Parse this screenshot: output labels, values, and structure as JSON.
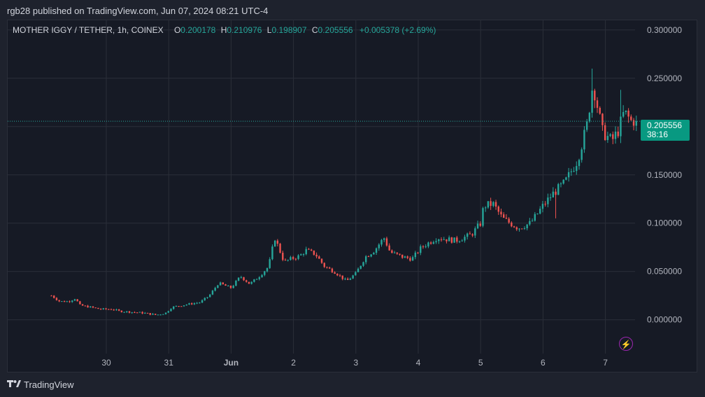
{
  "header": {
    "publisher_line": "rgb28 published on TradingView.com, Jun 07, 2024 08:21 UTC-4"
  },
  "legend": {
    "symbol": "MOTHER IGGY / TETHER, 1h, COINEX",
    "open_label": "O",
    "open": "0.200178",
    "high_label": "H",
    "high": "0.210976",
    "low_label": "L",
    "low": "0.198907",
    "close_label": "C",
    "close": "0.205556",
    "change": "+0.005378 (+2.69%)"
  },
  "price_tag": {
    "price": "0.205556",
    "countdown": "38:16"
  },
  "footer": {
    "brand": "TradingView",
    "logo_icon": "tradingview-logo-icon"
  },
  "colors": {
    "up": "#26a69a",
    "down": "#ef5350",
    "background": "#161a25",
    "grid": "#2a2e39",
    "price_line": "#26a69a"
  },
  "chart_data": {
    "type": "candlestick",
    "title": "MOTHER IGGY / TETHER, 1h, COINEX",
    "interval": "1h",
    "y_ticks": [
      0.0,
      0.05,
      0.1,
      0.15,
      0.2,
      0.25,
      0.3
    ],
    "y_tick_labels": [
      "0.000000",
      "0.050000",
      "0.100000",
      "0.150000",
      "0.200000",
      "0.250000",
      "0.300000"
    ],
    "ylim": [
      -0.035,
      0.31
    ],
    "x_ticks": [
      "30",
      "31",
      "Jun",
      "2",
      "3",
      "4",
      "5",
      "6",
      "7"
    ],
    "x_tick_days": [
      0,
      1,
      2,
      3,
      4,
      5,
      6,
      7,
      8
    ],
    "current_price": 0.205556,
    "grid": true,
    "path": [
      [
        -0.88,
        0.025
      ],
      [
        -0.75,
        0.019
      ],
      [
        -0.6,
        0.019
      ],
      [
        -0.5,
        0.022
      ],
      [
        -0.42,
        0.015
      ],
      [
        -0.25,
        0.013
      ],
      [
        -0.1,
        0.011
      ],
      [
        0.1,
        0.011
      ],
      [
        0.2,
        0.009
      ],
      [
        0.4,
        0.008
      ],
      [
        0.6,
        0.007
      ],
      [
        0.8,
        0.005
      ],
      [
        0.95,
        0.007
      ],
      [
        1.05,
        0.013
      ],
      [
        1.3,
        0.016
      ],
      [
        1.5,
        0.018
      ],
      [
        1.65,
        0.025
      ],
      [
        1.8,
        0.038
      ],
      [
        2.0,
        0.033
      ],
      [
        2.15,
        0.045
      ],
      [
        2.3,
        0.037
      ],
      [
        2.45,
        0.045
      ],
      [
        2.6,
        0.055
      ],
      [
        2.7,
        0.085
      ],
      [
        2.85,
        0.06
      ],
      [
        3.0,
        0.064
      ],
      [
        3.1,
        0.066
      ],
      [
        3.2,
        0.072
      ],
      [
        3.35,
        0.068
      ],
      [
        3.5,
        0.055
      ],
      [
        3.65,
        0.05
      ],
      [
        3.85,
        0.04
      ],
      [
        4.0,
        0.048
      ],
      [
        4.15,
        0.065
      ],
      [
        4.3,
        0.072
      ],
      [
        4.45,
        0.085
      ],
      [
        4.55,
        0.07
      ],
      [
        4.75,
        0.065
      ],
      [
        4.9,
        0.063
      ],
      [
        5.05,
        0.075
      ],
      [
        5.3,
        0.085
      ],
      [
        5.6,
        0.082
      ],
      [
        5.85,
        0.088
      ],
      [
        6.0,
        0.1
      ],
      [
        6.05,
        0.118
      ],
      [
        6.2,
        0.12
      ],
      [
        6.35,
        0.105
      ],
      [
        6.6,
        0.095
      ],
      [
        6.8,
        0.1
      ],
      [
        7.0,
        0.118
      ],
      [
        7.15,
        0.13
      ],
      [
        7.35,
        0.142
      ],
      [
        7.55,
        0.165
      ],
      [
        7.7,
        0.2
      ],
      [
        7.8,
        0.245
      ],
      [
        7.95,
        0.195
      ],
      [
        8.1,
        0.185
      ],
      [
        8.2,
        0.195
      ],
      [
        8.3,
        0.215
      ],
      [
        8.42,
        0.205
      ],
      [
        8.5,
        0.208
      ]
    ],
    "spikes": [
      [
        7.8,
        0.26
      ],
      [
        8.25,
        0.238
      ],
      [
        7.22,
        0.105
      ]
    ]
  }
}
